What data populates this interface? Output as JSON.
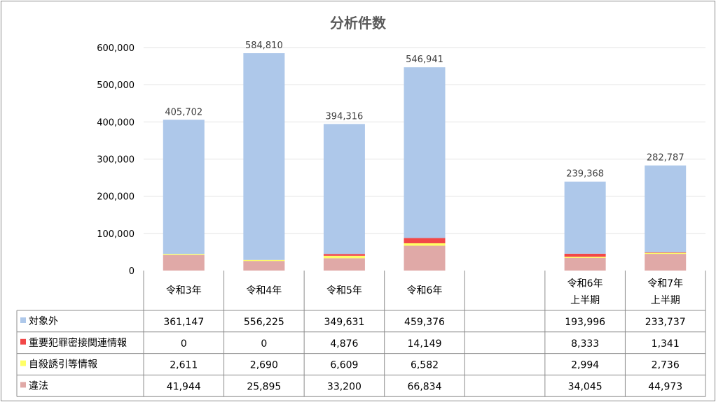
{
  "chart_data": {
    "type": "bar",
    "stacked": true,
    "title": "分析件数",
    "categories": [
      "令和3年",
      "令和4年",
      "令和5年",
      "令和6年",
      "",
      "令和6年\n上半期",
      "令和7年\n上半期"
    ],
    "series": [
      {
        "name": "違法",
        "color": "#e0a9a7",
        "values": [
          41944,
          25895,
          33200,
          66834,
          null,
          34045,
          44973
        ]
      },
      {
        "name": "自殺誘引等情報",
        "color": "#ffff66",
        "values": [
          2611,
          2690,
          6609,
          6582,
          null,
          2994,
          2736
        ]
      },
      {
        "name": "重要犯罪密接関連情報",
        "color": "#f24848",
        "values": [
          0,
          0,
          4876,
          14149,
          null,
          8333,
          1341
        ]
      },
      {
        "name": "対象外",
        "color": "#aec8ea",
        "values": [
          361147,
          556225,
          349631,
          459376,
          null,
          193996,
          233737
        ]
      }
    ],
    "totals": [
      405702,
      584810,
      394316,
      546941,
      null,
      239368,
      282787
    ],
    "table_row_order": [
      "対象外",
      "重要犯罪密接関連情報",
      "自殺誘引等情報",
      "違法"
    ],
    "ylim": [
      0,
      600000
    ],
    "yticks": [
      "0",
      "100,000",
      "200,000",
      "300,000",
      "400,000",
      "500,000",
      "600,000"
    ],
    "grid": true,
    "legend": "data-table"
  }
}
